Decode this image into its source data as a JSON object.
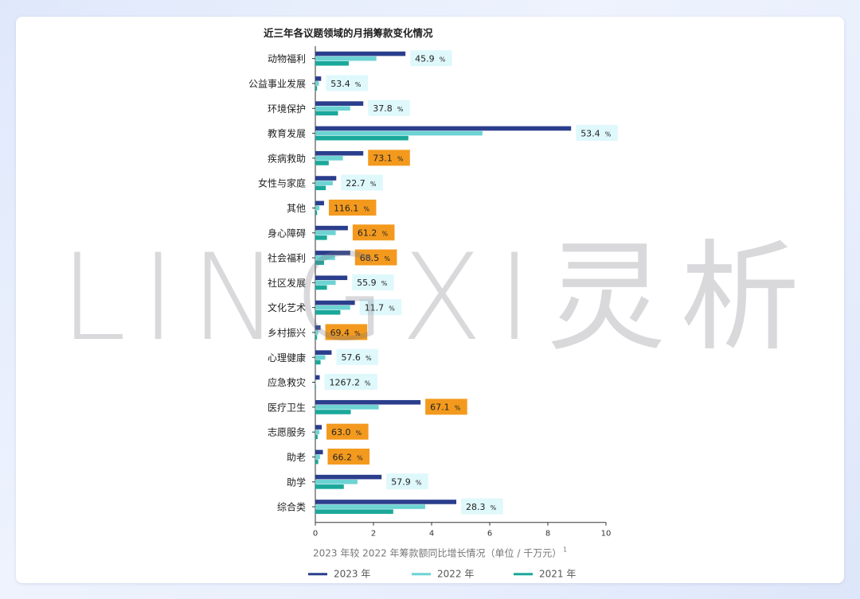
{
  "watermark": {
    "text": "LINGXI灵析"
  },
  "chart_data": {
    "type": "bar",
    "orientation": "horizontal",
    "title": "近三年各议题领域的月捐筹款变化情况",
    "xlabel": "2023 年较 2022 年筹款额同比增长情况（单位 / 千万元）",
    "xlabel_superscript": "1",
    "xlim": [
      0,
      10
    ],
    "xticks": [
      0,
      2,
      4,
      6,
      8,
      10
    ],
    "grid": false,
    "legend_position": "bottom",
    "categories": [
      "动物福利",
      "公益事业发展",
      "环境保护",
      "教育发展",
      "疾病救助",
      "女性与家庭",
      "其他",
      "身心障碍",
      "社会福利",
      "社区发展",
      "文化艺术",
      "乡村振兴",
      "心理健康",
      "应急救灾",
      "医疗卫生",
      "志愿服务",
      "助老",
      "助学",
      "综合类"
    ],
    "series": [
      {
        "name": "2023 年",
        "color": "#2a3e8c",
        "values": [
          3.1,
          0.2,
          1.65,
          8.8,
          1.65,
          0.72,
          0.3,
          1.12,
          1.2,
          1.1,
          1.36,
          0.18,
          0.56,
          0.15,
          3.62,
          0.22,
          0.26,
          2.28,
          4.85
        ]
      },
      {
        "name": "2022 年",
        "color": "#6dd3d3",
        "values": [
          2.1,
          0.12,
          1.2,
          5.75,
          0.95,
          0.6,
          0.14,
          0.7,
          0.68,
          0.7,
          1.2,
          0.1,
          0.34,
          0.01,
          2.18,
          0.14,
          0.16,
          1.45,
          3.78
        ]
      },
      {
        "name": "2021 年",
        "color": "#1aa89a",
        "values": [
          1.15,
          0.06,
          0.78,
          3.2,
          0.46,
          0.36,
          0.06,
          0.4,
          0.3,
          0.4,
          0.86,
          0.06,
          0.18,
          0.01,
          1.22,
          0.08,
          0.1,
          0.98,
          2.68
        ]
      }
    ],
    "growth_labels": [
      "45.9",
      "53.4",
      "37.8",
      "53.4",
      "73.1",
      "22.7",
      "116.1",
      "61.2",
      "68.5",
      "55.9",
      "11.7",
      "69.4",
      "57.6",
      "1267.2",
      "67.1",
      "63.0",
      "66.2",
      "57.9",
      "28.3"
    ],
    "growth_unit": "%",
    "growth_highlight": [
      false,
      false,
      false,
      false,
      true,
      false,
      true,
      true,
      true,
      false,
      false,
      true,
      false,
      false,
      true,
      true,
      true,
      false,
      false
    ],
    "label_colors": {
      "normal": "#dff8fb",
      "highlight": "#f39a1e",
      "text": "#222222"
    }
  }
}
